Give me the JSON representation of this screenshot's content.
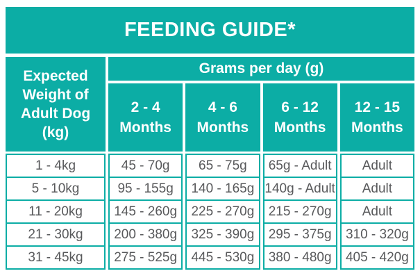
{
  "colors": {
    "teal": "#0cada5",
    "header_text": "#ffffff",
    "data_text": "#58595b",
    "background": "#ffffff"
  },
  "table": {
    "title": "FEEDING GUIDE*",
    "weight_header_lines": [
      "Expected",
      "Weight of",
      "Adult Dog",
      "(kg)"
    ],
    "grams_header": "Grams per day (g)",
    "month_columns": [
      {
        "range": "2 - 4",
        "unit": "Months"
      },
      {
        "range": "4 - 6",
        "unit": "Months"
      },
      {
        "range": "6 - 12",
        "unit": "Months"
      },
      {
        "range": "12 - 15",
        "unit": "Months"
      }
    ],
    "rows": [
      {
        "weight": "1 - 4kg",
        "values": [
          "45 - 70g",
          "65 - 75g",
          "65g - Adult",
          "Adult"
        ]
      },
      {
        "weight": "5 - 10kg",
        "values": [
          "95 - 155g",
          "140 - 165g",
          "140g - Adult",
          "Adult"
        ]
      },
      {
        "weight": "11 - 20kg",
        "values": [
          "145 - 260g",
          "225 - 270g",
          "215 - 270g",
          "Adult"
        ]
      },
      {
        "weight": "21 - 30kg",
        "values": [
          "200 - 380g",
          "325 - 390g",
          "295 - 375g",
          "310 - 320g"
        ]
      },
      {
        "weight": "31 - 45kg",
        "values": [
          "275 - 525g",
          "445 - 530g",
          "380 - 480g",
          "405 - 420g"
        ]
      }
    ]
  },
  "chart_data": {
    "type": "table",
    "title": "FEEDING GUIDE*",
    "row_header": "Expected Weight of Adult Dog (kg)",
    "column_group_header": "Grams per day (g)",
    "columns": [
      "2 - 4 Months",
      "4 - 6 Months",
      "6 - 12 Months",
      "12 - 15 Months"
    ],
    "rows": [
      {
        "expected_weight_kg": "1 - 4kg",
        "grams_per_day": [
          "45 - 70g",
          "65 - 75g",
          "65g - Adult",
          "Adult"
        ]
      },
      {
        "expected_weight_kg": "5 - 10kg",
        "grams_per_day": [
          "95 - 155g",
          "140 - 165g",
          "140g - Adult",
          "Adult"
        ]
      },
      {
        "expected_weight_kg": "11 - 20kg",
        "grams_per_day": [
          "145 - 260g",
          "225 - 270g",
          "215 - 270g",
          "Adult"
        ]
      },
      {
        "expected_weight_kg": "21 - 30kg",
        "grams_per_day": [
          "200 - 380g",
          "325 - 390g",
          "295 - 375g",
          "310 - 320g"
        ]
      },
      {
        "expected_weight_kg": "31 - 45kg",
        "grams_per_day": [
          "275 - 525g",
          "445 - 530g",
          "380 - 480g",
          "405 - 420g"
        ]
      }
    ]
  }
}
